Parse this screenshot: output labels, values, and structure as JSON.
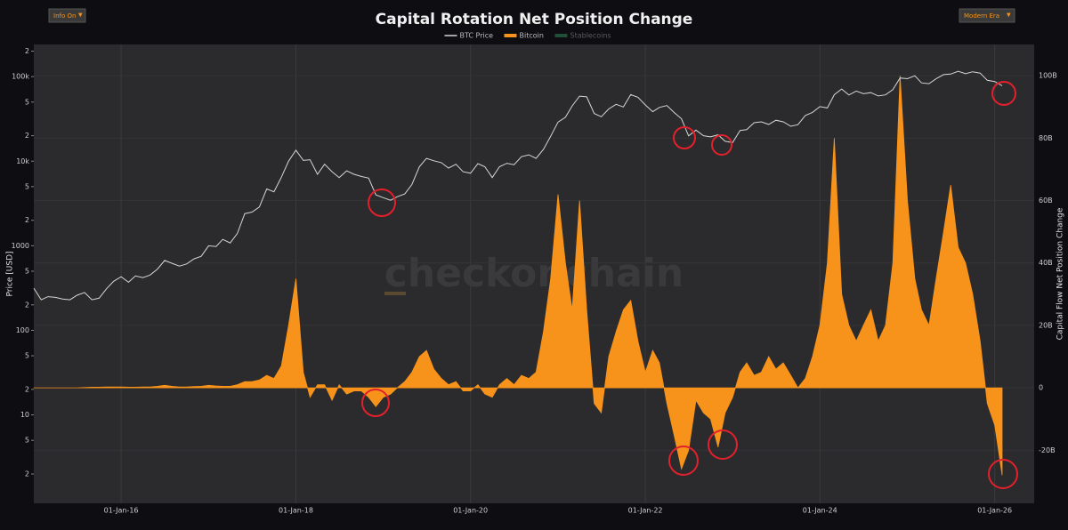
{
  "controls": {
    "left": "Info On",
    "right": "Modern Era"
  },
  "chart_data": {
    "type": "line_area",
    "title": "Capital Rotation Net Position Change",
    "watermark": "checkonchain",
    "ylabel": "Price [USD]",
    "y2label": "Capital Flow Net Position Change",
    "ylog": true,
    "grid": true,
    "xlim": [
      "2015-01-01",
      "2026-06-15"
    ],
    "xticks": [
      {
        "value": "2016-01-01",
        "label": "01-Jan-16"
      },
      {
        "value": "2018-01-01",
        "label": "01-Jan-18"
      },
      {
        "value": "2020-01-01",
        "label": "01-Jan-20"
      },
      {
        "value": "2022-01-01",
        "label": "01-Jan-22"
      },
      {
        "value": "2024-01-01",
        "label": "01-Jan-24"
      },
      {
        "value": "2026-01-01",
        "label": "01-Jan-26"
      }
    ],
    "ylim": [
      0.9,
      240000
    ],
    "yticks": [
      {
        "value": 2,
        "label": "2"
      },
      {
        "value": 5,
        "label": "5"
      },
      10,
      {
        "value": 20,
        "label": "2"
      },
      {
        "value": 50,
        "label": "5"
      },
      100,
      {
        "value": 200,
        "label": "2"
      },
      {
        "value": 500,
        "label": "5"
      },
      1000,
      {
        "value": 2000,
        "label": "2"
      },
      {
        "value": 5000,
        "label": "5"
      },
      {
        "value": 10000,
        "label": "10k"
      },
      {
        "value": 20000,
        "label": "2"
      },
      {
        "value": 50000,
        "label": "5"
      },
      {
        "value": 100000,
        "label": "100k"
      },
      {
        "value": 200000,
        "label": "2"
      }
    ],
    "y2lim": [
      -37,
      110
    ],
    "y2ticks": [
      {
        "value": -20,
        "label": "-20B"
      },
      0,
      {
        "value": 20,
        "label": "20B"
      },
      {
        "value": 40,
        "label": "40B"
      },
      {
        "value": 60,
        "label": "60B"
      },
      {
        "value": 80,
        "label": "80B"
      },
      {
        "value": 100,
        "label": "100B"
      }
    ],
    "x": [
      "2015-01-01",
      "2015-02-01",
      "2015-03-01",
      "2015-04-01",
      "2015-05-01",
      "2015-06-01",
      "2015-07-01",
      "2015-08-01",
      "2015-09-01",
      "2015-10-01",
      "2015-11-01",
      "2015-12-01",
      "2016-01-01",
      "2016-02-01",
      "2016-03-01",
      "2016-04-01",
      "2016-05-01",
      "2016-06-01",
      "2016-07-01",
      "2016-08-01",
      "2016-09-01",
      "2016-10-01",
      "2016-11-01",
      "2016-12-01",
      "2017-01-01",
      "2017-02-01",
      "2017-03-01",
      "2017-04-01",
      "2017-05-01",
      "2017-06-01",
      "2017-07-01",
      "2017-08-01",
      "2017-09-01",
      "2017-10-01",
      "2017-11-01",
      "2017-12-01",
      "2018-01-01",
      "2018-02-01",
      "2018-03-01",
      "2018-04-01",
      "2018-05-01",
      "2018-06-01",
      "2018-07-01",
      "2018-08-01",
      "2018-09-01",
      "2018-10-01",
      "2018-11-01",
      "2018-12-01",
      "2019-01-01",
      "2019-02-01",
      "2019-03-01",
      "2019-04-01",
      "2019-05-01",
      "2019-06-01",
      "2019-07-01",
      "2019-08-01",
      "2019-09-01",
      "2019-10-01",
      "2019-11-01",
      "2019-12-01",
      "2020-01-01",
      "2020-02-01",
      "2020-03-01",
      "2020-04-01",
      "2020-05-01",
      "2020-06-01",
      "2020-07-01",
      "2020-08-01",
      "2020-09-01",
      "2020-10-01",
      "2020-11-01",
      "2020-12-01",
      "2021-01-01",
      "2021-02-01",
      "2021-03-01",
      "2021-04-01",
      "2021-05-01",
      "2021-06-01",
      "2021-07-01",
      "2021-08-01",
      "2021-09-01",
      "2021-10-01",
      "2021-11-01",
      "2021-12-01",
      "2022-01-01",
      "2022-02-01",
      "2022-03-01",
      "2022-04-01",
      "2022-05-01",
      "2022-06-01",
      "2022-07-01",
      "2022-08-01",
      "2022-09-01",
      "2022-10-01",
      "2022-11-01",
      "2022-12-01",
      "2023-01-01",
      "2023-02-01",
      "2023-03-01",
      "2023-04-01",
      "2023-05-01",
      "2023-06-01",
      "2023-07-01",
      "2023-08-01",
      "2023-09-01",
      "2023-10-01",
      "2023-11-01",
      "2023-12-01",
      "2024-01-01",
      "2024-02-01",
      "2024-03-01",
      "2024-04-01",
      "2024-05-01",
      "2024-06-01",
      "2024-07-01",
      "2024-08-01",
      "2024-09-01",
      "2024-10-01",
      "2024-11-01",
      "2024-12-01",
      "2025-01-01",
      "2025-02-01",
      "2025-03-01",
      "2025-04-01",
      "2025-05-01",
      "2025-06-01",
      "2025-07-01",
      "2025-08-01",
      "2025-09-01",
      "2025-10-01",
      "2025-11-01",
      "2025-12-01",
      "2026-01-01",
      "2026-02-01"
    ],
    "series": [
      {
        "name": "BTC Price",
        "color": "#d6d6d6",
        "axis": "y",
        "values": [
          315,
          230,
          250,
          245,
          235,
          230,
          260,
          280,
          230,
          240,
          310,
          380,
          430,
          370,
          440,
          420,
          450,
          530,
          670,
          620,
          575,
          610,
          700,
          750,
          1000,
          980,
          1190,
          1080,
          1400,
          2400,
          2500,
          2870,
          4700,
          4340,
          6450,
          10000,
          13500,
          10200,
          10400,
          7000,
          9200,
          7500,
          6400,
          7700,
          7000,
          6600,
          6300,
          4000,
          3700,
          3450,
          3800,
          4100,
          5300,
          8600,
          10800,
          10100,
          9600,
          8300,
          9200,
          7500,
          7200,
          9350,
          8600,
          6400,
          8600,
          9450,
          9100,
          11300,
          11900,
          10800,
          13800,
          19700,
          29000,
          33000,
          45000,
          58800,
          57700,
          36700,
          33500,
          41500,
          47100,
          43800,
          61300,
          57000,
          46300,
          38500,
          43200,
          45500,
          37700,
          31800,
          19900,
          23300,
          20000,
          19400,
          20500,
          17200,
          16600,
          23100,
          23600,
          28500,
          29200,
          27200,
          30500,
          29200,
          25900,
          27000,
          34700,
          37700,
          44200,
          42600,
          61100,
          71300,
          60600,
          67500,
          62700,
          64600,
          59000,
          60800,
          70200,
          96400,
          94400,
          102400,
          84300,
          82500,
          94200,
          105700,
          107100,
          115800,
          108200,
          114000,
          110000,
          90400,
          87500,
          78000
        ]
      },
      {
        "name": "Bitcoin",
        "color": "#f7931a",
        "axis": "y2",
        "values": [
          0,
          0,
          0,
          0,
          0,
          0,
          0,
          0.1,
          0.2,
          0.2,
          0.3,
          0.3,
          0.3,
          0.2,
          0.2,
          0.3,
          0.3,
          0.5,
          0.8,
          0.5,
          0.3,
          0.3,
          0.4,
          0.5,
          0.8,
          0.6,
          0.5,
          0.5,
          1,
          2,
          2,
          2.5,
          4,
          3,
          7,
          20,
          35,
          5,
          -3,
          1,
          1,
          -4,
          1,
          -2,
          -1,
          -1,
          -3,
          -6,
          -3,
          -2,
          0,
          2,
          5,
          10,
          12,
          6,
          3,
          1,
          2,
          -1,
          -1,
          1,
          -2,
          -3,
          1,
          3,
          1,
          4,
          3,
          5,
          18,
          35,
          62,
          40,
          25,
          60,
          25,
          -5,
          -8,
          10,
          18,
          25,
          28,
          15,
          5,
          12,
          8,
          -5,
          -15,
          -26,
          -20,
          -4,
          -8,
          -10,
          -19,
          -8,
          -3,
          5,
          8,
          4,
          5,
          10,
          6,
          8,
          4,
          0,
          3,
          10,
          20,
          40,
          80,
          30,
          20,
          15,
          20,
          25,
          15,
          20,
          40,
          100,
          60,
          35,
          25,
          20,
          35,
          50,
          65,
          45,
          40,
          30,
          15,
          -5,
          -12,
          -28
        ]
      },
      {
        "name": "Stablecoins",
        "color": "#2e7d4f",
        "axis": "y2",
        "visible": false
      }
    ]
  }
}
